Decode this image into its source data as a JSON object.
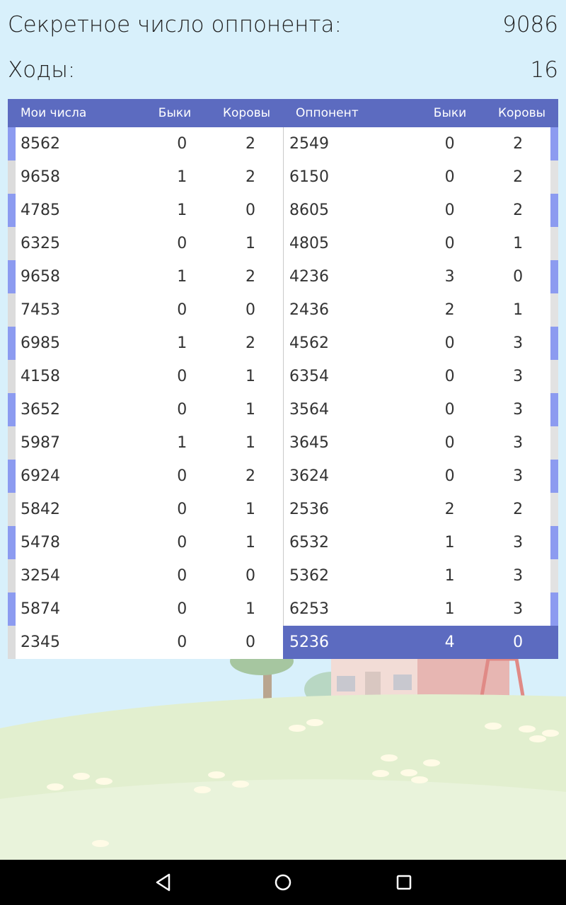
{
  "header": {
    "secret_label": "Секретное число оппонента:",
    "secret_value": "9086",
    "moves_label": "Ходы:",
    "moves_value": "16"
  },
  "mine": {
    "headers": [
      "Мои числа",
      "Быки",
      "Коровы"
    ],
    "rows": [
      [
        "8562",
        "0",
        "2"
      ],
      [
        "9658",
        "1",
        "2"
      ],
      [
        "4785",
        "1",
        "0"
      ],
      [
        "6325",
        "0",
        "1"
      ],
      [
        "9658",
        "1",
        "2"
      ],
      [
        "7453",
        "0",
        "0"
      ],
      [
        "6985",
        "1",
        "2"
      ],
      [
        "4158",
        "0",
        "1"
      ],
      [
        "3652",
        "0",
        "1"
      ],
      [
        "5987",
        "1",
        "1"
      ],
      [
        "6924",
        "0",
        "2"
      ],
      [
        "5842",
        "0",
        "1"
      ],
      [
        "5478",
        "0",
        "1"
      ],
      [
        "3254",
        "0",
        "0"
      ],
      [
        "5874",
        "0",
        "1"
      ],
      [
        "2345",
        "0",
        "0"
      ]
    ]
  },
  "opponent": {
    "headers": [
      "Оппонент",
      "Быки",
      "Коровы"
    ],
    "rows": [
      [
        "2549",
        "0",
        "2"
      ],
      [
        "6150",
        "0",
        "2"
      ],
      [
        "8605",
        "0",
        "2"
      ],
      [
        "4805",
        "0",
        "1"
      ],
      [
        "4236",
        "3",
        "0"
      ],
      [
        "2436",
        "2",
        "1"
      ],
      [
        "4562",
        "0",
        "3"
      ],
      [
        "6354",
        "0",
        "3"
      ],
      [
        "3564",
        "0",
        "3"
      ],
      [
        "3645",
        "0",
        "3"
      ],
      [
        "3624",
        "0",
        "3"
      ],
      [
        "2536",
        "2",
        "2"
      ],
      [
        "6532",
        "1",
        "3"
      ],
      [
        "5362",
        "1",
        "3"
      ],
      [
        "6253",
        "1",
        "3"
      ],
      [
        "5236",
        "4",
        "0"
      ]
    ]
  },
  "nav": {
    "back_icon": "back-triangle-icon",
    "home_icon": "home-circle-icon",
    "recent_icon": "recents-square-icon"
  },
  "colors": {
    "header_bg": "#5c6bc0",
    "stripe": "#8c9bf0",
    "sky": "#d8f0fb"
  }
}
